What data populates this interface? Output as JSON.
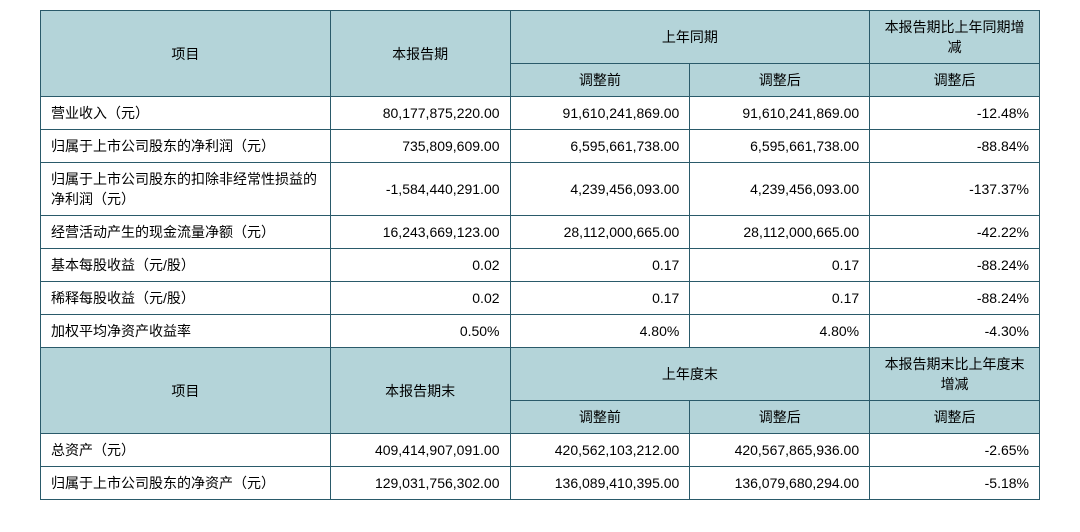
{
  "colors": {
    "header_bg": "#b4d4d9",
    "border": "#2a5a6a",
    "body_bg": "#ffffff",
    "text": "#000000"
  },
  "section1": {
    "header": {
      "item": "项目",
      "current": "本报告期",
      "prior": "上年同期",
      "change": "本报告期比上年同期增减",
      "before": "调整前",
      "after": "调整后",
      "after_change": "调整后"
    },
    "rows": [
      {
        "label": "营业收入（元）",
        "current": "80,177,875,220.00",
        "before": "91,610,241,869.00",
        "after": "91,610,241,869.00",
        "change": "-12.48%"
      },
      {
        "label": "归属于上市公司股东的净利润（元）",
        "current": "735,809,609.00",
        "before": "6,595,661,738.00",
        "after": "6,595,661,738.00",
        "change": "-88.84%"
      },
      {
        "label": "归属于上市公司股东的扣除非经常性损益的净利润（元）",
        "current": "-1,584,440,291.00",
        "before": "4,239,456,093.00",
        "after": "4,239,456,093.00",
        "change": "-137.37%"
      },
      {
        "label": "经营活动产生的现金流量净额（元）",
        "current": "16,243,669,123.00",
        "before": "28,112,000,665.00",
        "after": "28,112,000,665.00",
        "change": "-42.22%"
      },
      {
        "label": "基本每股收益（元/股）",
        "current": "0.02",
        "before": "0.17",
        "after": "0.17",
        "change": "-88.24%"
      },
      {
        "label": "稀释每股收益（元/股）",
        "current": "0.02",
        "before": "0.17",
        "after": "0.17",
        "change": "-88.24%"
      },
      {
        "label": "加权平均净资产收益率",
        "current": "0.50%",
        "before": "4.80%",
        "after": "4.80%",
        "change": "-4.30%"
      }
    ]
  },
  "section2": {
    "header": {
      "item": "项目",
      "current": "本报告期末",
      "prior": "上年度末",
      "change": "本报告期末比上年度末增减",
      "before": "调整前",
      "after": "调整后",
      "after_change": "调整后"
    },
    "rows": [
      {
        "label": "总资产（元）",
        "current": "409,414,907,091.00",
        "before": "420,562,103,212.00",
        "after": "420,567,865,936.00",
        "change": "-2.65%"
      },
      {
        "label": "归属于上市公司股东的净资产（元）",
        "current": "129,031,756,302.00",
        "before": "136,089,410,395.00",
        "after": "136,079,680,294.00",
        "change": "-5.18%"
      }
    ]
  }
}
